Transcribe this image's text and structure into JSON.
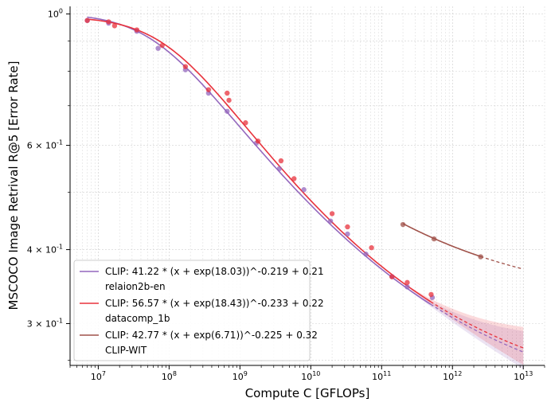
{
  "chart_data": {
    "type": "scatter",
    "xscale": "log",
    "yscale": "log",
    "xlabel": "Compute C [GFLOPs]",
    "ylabel": "MSCOCO Image Retrival R@5 [Error Rate]",
    "xlim": [
      4000000.0,
      20000000000000.0
    ],
    "ylim": [
      0.255,
      1.03
    ],
    "x_tick_labels": [
      "10^7",
      "10^8",
      "10^9",
      "10^10",
      "10^11",
      "10^12",
      "10^13"
    ],
    "y_tick_labels": [
      {
        "value": 1.0,
        "label": "10^0"
      },
      {
        "value": 0.6,
        "label": "6 × 10^-1"
      },
      {
        "value": 0.4,
        "label": "4 × 10^-1"
      },
      {
        "value": 0.3,
        "label": "3 × 10^-1"
      }
    ],
    "grid": true,
    "legend_position": "bottom-left",
    "series": [
      {
        "name": "relaion2b-en",
        "fit_label": "CLIP: 41.22 * (x + exp(18.03))^-0.219 + 0.21",
        "color": "#9467bd",
        "fit": {
          "A": 41.22,
          "x0_log": 18.03,
          "alpha": 0.219,
          "E": 0.21
        },
        "fit_range": [
          7000000.0,
          10000000000000.0
        ],
        "solid_until": 500000000000.0,
        "band": true,
        "points": [
          [
            7000000.0,
            0.975
          ],
          [
            14000000.0,
            0.965
          ],
          [
            35000000.0,
            0.935
          ],
          [
            70000000.0,
            0.875
          ],
          [
            170000000.0,
            0.805
          ],
          [
            360000000.0,
            0.735
          ],
          [
            660000000.0,
            0.685
          ],
          [
            1700000000.0,
            0.605
          ],
          [
            3600000000.0,
            0.548
          ],
          [
            8000000000.0,
            0.505
          ],
          [
            19000000000.0,
            0.447
          ],
          [
            33000000000.0,
            0.425
          ],
          [
            60000000000.0,
            0.393
          ],
          [
            140000000000.0,
            0.36
          ],
          [
            230000000000.0,
            0.346
          ],
          [
            520000000000.0,
            0.332
          ]
        ]
      },
      {
        "name": "datacomp_1b",
        "fit_label": "CLIP: 56.57 * (x + exp(18.43))^-0.233 + 0.22",
        "color": "#e8323c",
        "fit": {
          "A": 56.57,
          "x0_log": 18.43,
          "alpha": 0.233,
          "E": 0.22
        },
        "fit_range": [
          7000000.0,
          10000000000000.0
        ],
        "solid_until": 500000000000.0,
        "band": true,
        "points": [
          [
            7000000.0,
            0.975
          ],
          [
            14000000.0,
            0.97
          ],
          [
            17000000.0,
            0.955
          ],
          [
            35000000.0,
            0.94
          ],
          [
            80000000.0,
            0.885
          ],
          [
            170000000.0,
            0.815
          ],
          [
            360000000.0,
            0.745
          ],
          [
            660000000.0,
            0.735
          ],
          [
            700000000.0,
            0.715
          ],
          [
            1200000000.0,
            0.655
          ],
          [
            1800000000.0,
            0.61
          ],
          [
            3800000000.0,
            0.565
          ],
          [
            5800000000.0,
            0.527
          ],
          [
            20000000000.0,
            0.46
          ],
          [
            33000000000.0,
            0.437
          ],
          [
            72000000000.0,
            0.403
          ],
          [
            140000000000.0,
            0.36
          ],
          [
            230000000000.0,
            0.352
          ],
          [
            500000000000.0,
            0.336
          ]
        ]
      },
      {
        "name": "CLIP-WIT",
        "fit_label": "CLIP: 42.77 * (x + exp(6.71))^-0.225 + 0.32",
        "color": "#a0524a",
        "fit": {
          "A": 42.77,
          "x0_log": 6.71,
          "alpha": 0.225,
          "E": 0.32
        },
        "fit_range": [
          200000000000.0,
          10000000000000.0
        ],
        "solid_until": 2500000000000.0,
        "band": false,
        "points": [
          [
            200000000000.0,
            0.441
          ],
          [
            550000000000.0,
            0.417
          ],
          [
            2500000000000.0,
            0.389
          ]
        ]
      }
    ]
  }
}
